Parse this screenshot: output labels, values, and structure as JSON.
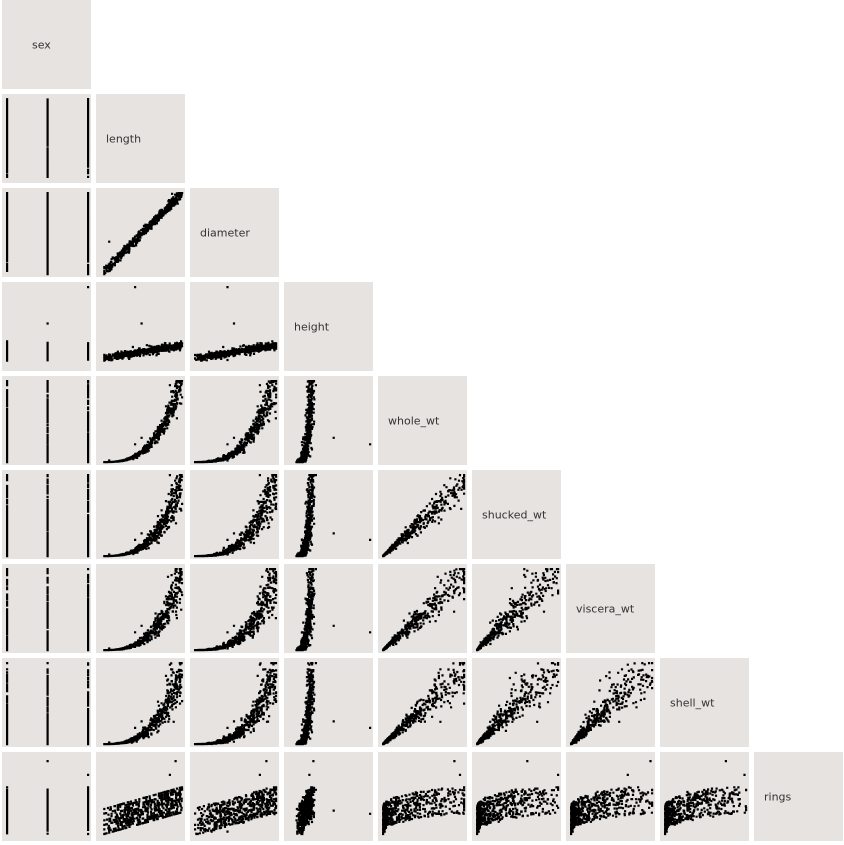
{
  "chart_data": {
    "type": "scatter",
    "layout": "scatterplot-matrix-lower-triangle",
    "variables": [
      "sex",
      "length",
      "diameter",
      "height",
      "whole_wt",
      "shucked_wt",
      "viscera_wt",
      "shell_wt",
      "rings"
    ],
    "diagonal": "variable-name",
    "upper_triangle": "empty",
    "grid": false,
    "colors": {
      "panel": "#e6e3e0",
      "point": "#000000",
      "label_text": "#333333",
      "background": "#ffffff"
    }
  }
}
